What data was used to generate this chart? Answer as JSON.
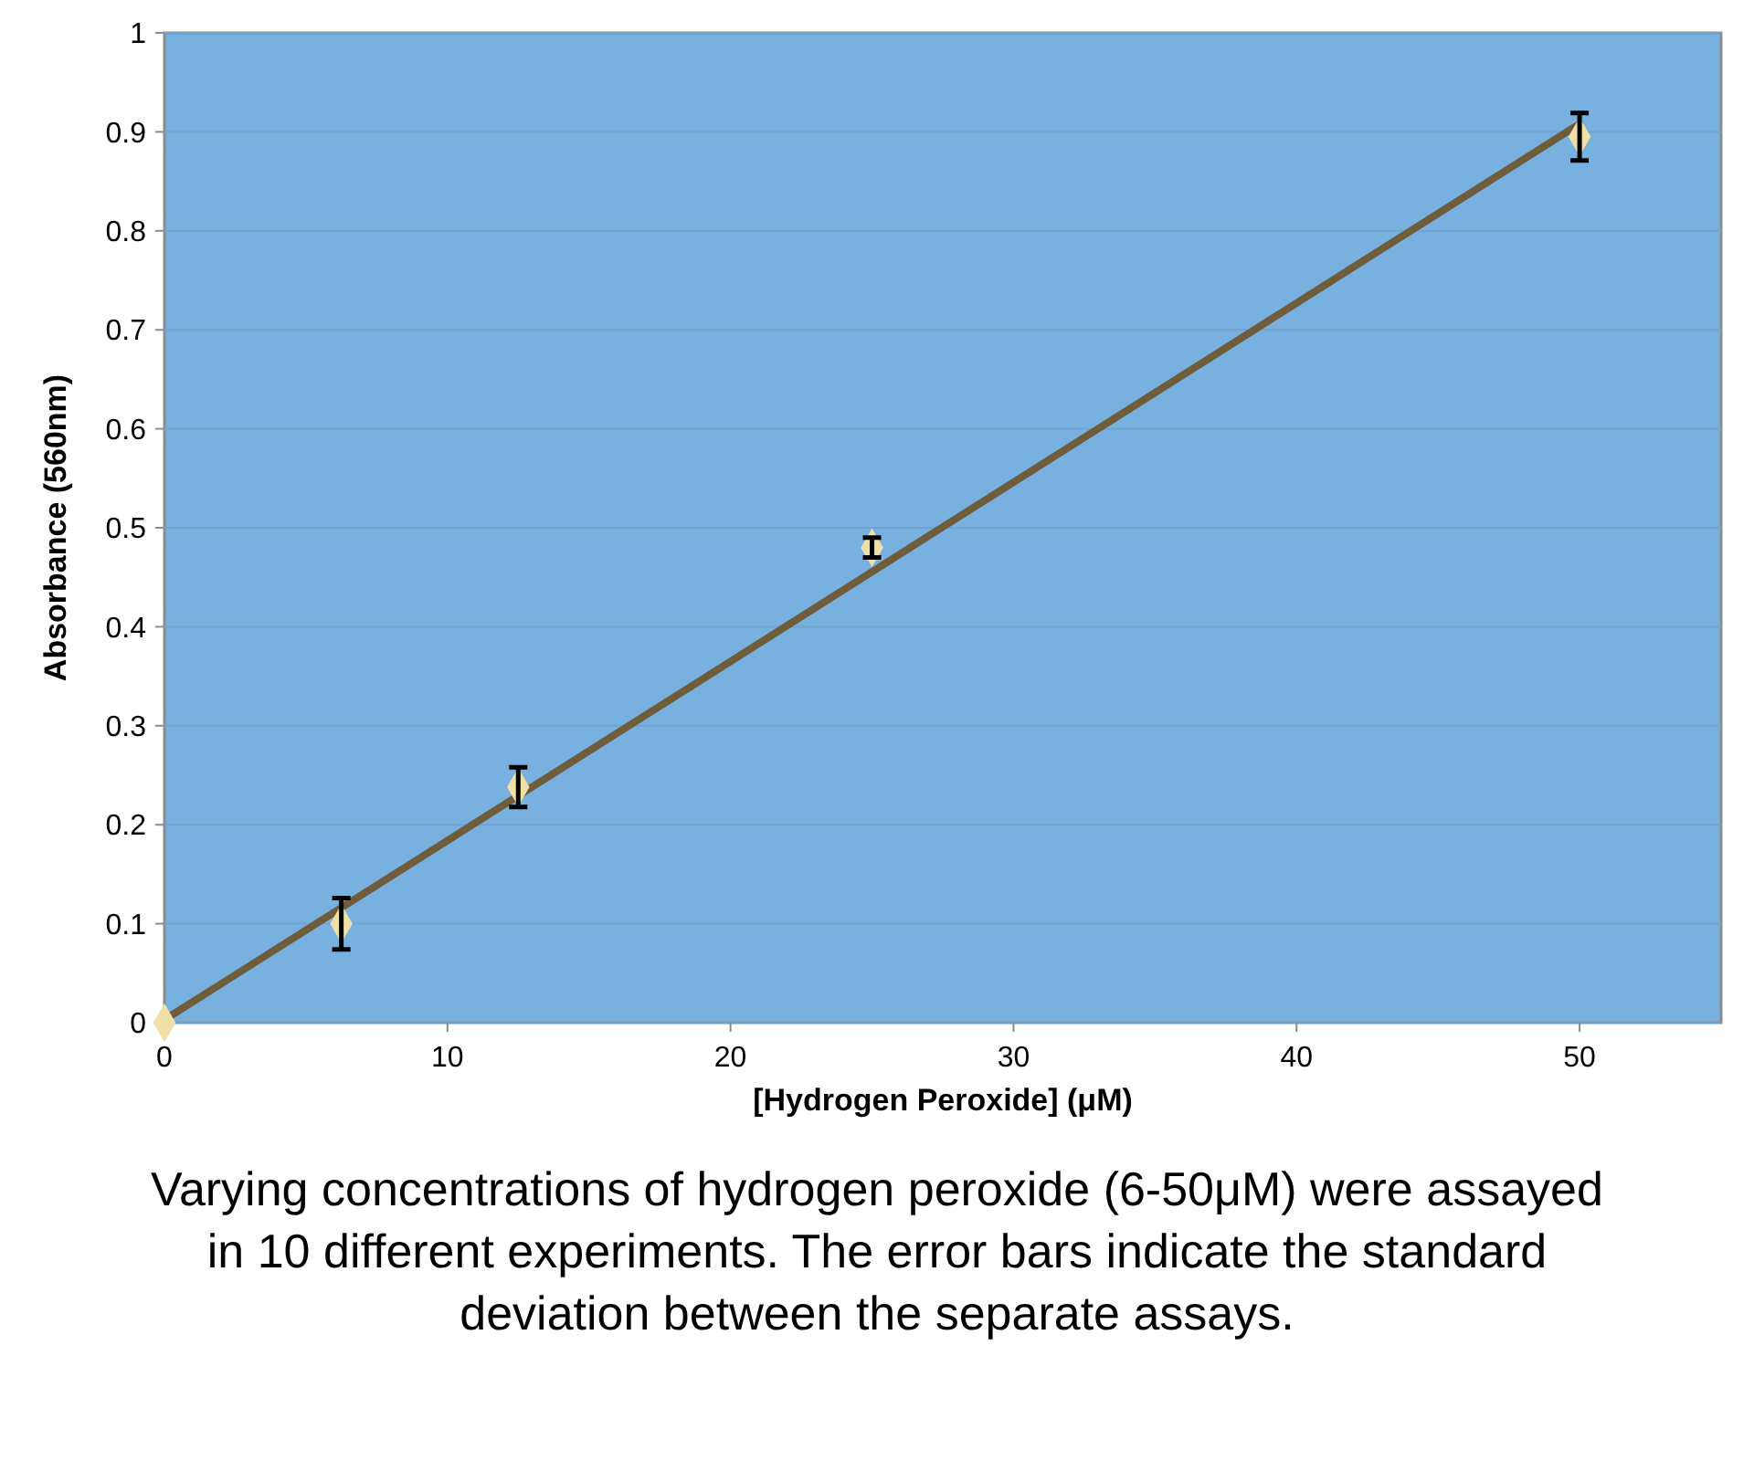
{
  "chart_data": {
    "type": "scatter",
    "xlabel": "[Hydrogen Peroxide] (μM)",
    "ylabel": "Absorbance (560nm)",
    "xlim": [
      0,
      55
    ],
    "xticks": [
      0,
      10,
      20,
      30,
      40,
      50
    ],
    "ylim": [
      0,
      1
    ],
    "yticks": [
      0,
      0.1,
      0.2,
      0.3,
      0.4,
      0.5,
      0.6,
      0.7,
      0.8,
      0.9,
      1
    ],
    "grid": "y",
    "marker": "diamond",
    "series": [
      {
        "type": "line",
        "color": "#6e5c3a",
        "x": [
          0,
          50
        ],
        "values": [
          0.003,
          0.908
        ],
        "marker": "none"
      },
      {
        "color": "#f0dfa6",
        "x": [
          0,
          6.25,
          12.5,
          25,
          50
        ],
        "values": [
          0,
          0.1,
          0.238,
          0.48,
          0.895
        ],
        "errors": [
          null,
          0.026,
          0.02,
          0.01,
          0.024
        ]
      }
    ],
    "annotations": [
      "Varying concentrations of hydrogen peroxide (6-50μM) were assayed in 10 different experiments. The error bars indicate the standard deviation between the separate assays."
    ]
  }
}
